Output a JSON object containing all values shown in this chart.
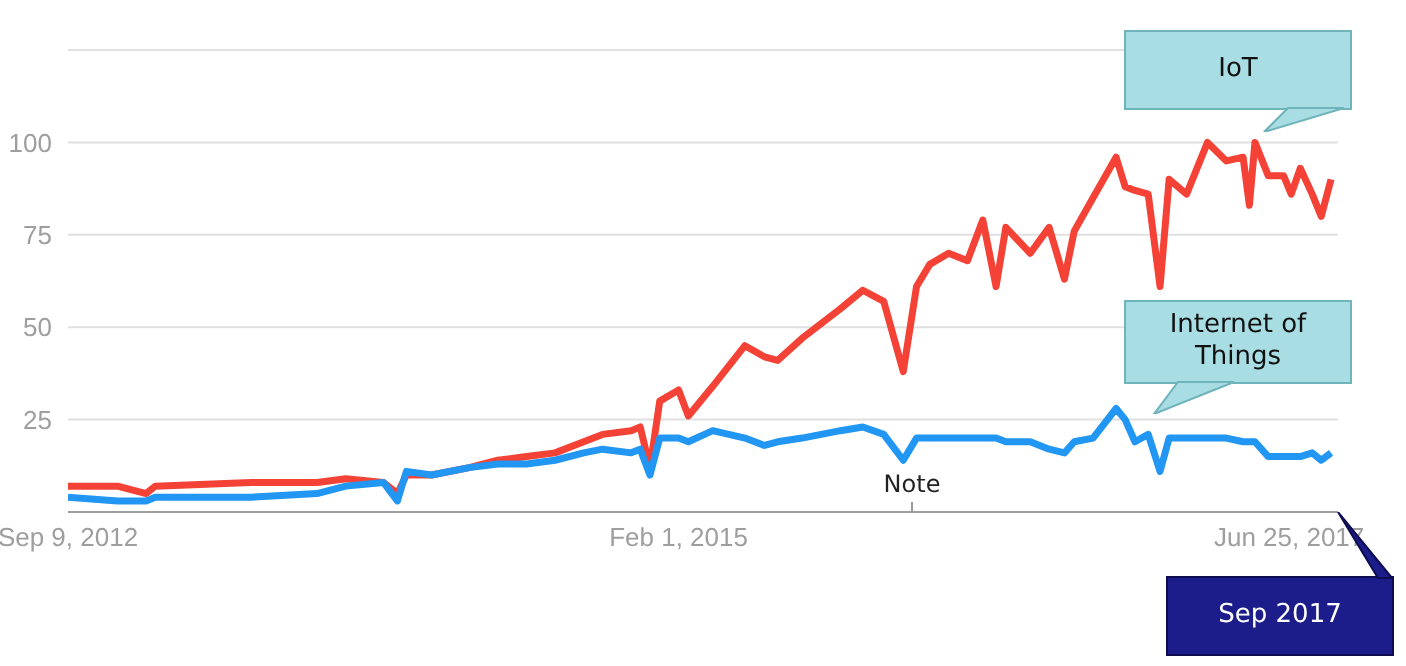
{
  "chart_data": {
    "type": "line",
    "x": [
      "2012-09-09",
      "2012-11-19",
      "2012-12-30",
      "2013-01-12",
      "2013-05-29",
      "2013-09-01",
      "2013-10-12",
      "2013-12-05",
      "2013-12-25",
      "2014-01-07",
      "2014-02-12",
      "2014-04-07",
      "2014-05-18",
      "2014-06-28",
      "2014-08-08",
      "2014-09-18",
      "2014-10-15",
      "2014-11-25",
      "2014-12-08",
      "2014-12-22",
      "2015-01-05",
      "2015-02-01",
      "2015-02-15",
      "2015-03-22",
      "2015-05-07",
      "2015-06-04",
      "2015-06-23",
      "2015-07-28",
      "2015-09-21",
      "2015-10-23",
      "2015-11-22",
      "2015-12-20",
      "2016-01-08",
      "2016-01-27",
      "2016-02-23",
      "2016-03-21",
      "2016-04-12",
      "2016-05-01",
      "2016-05-15",
      "2016-06-19",
      "2016-07-16",
      "2016-08-07",
      "2016-08-21",
      "2016-09-17",
      "2016-10-20",
      "2016-11-02",
      "2016-11-16",
      "2016-12-05",
      "2016-12-22",
      "2017-01-04",
      "2017-01-29",
      "2017-02-28",
      "2017-03-27",
      "2017-04-20",
      "2017-04-29",
      "2017-05-07",
      "2017-05-26",
      "2017-06-17",
      "2017-06-28",
      "2017-07-11",
      "2017-07-28",
      "2017-08-10",
      "2017-08-24"
    ],
    "series": [
      {
        "color": "#f44336",
        "values": [
          7,
          7,
          5,
          7,
          8,
          8,
          9,
          8,
          5,
          10,
          10,
          12,
          14,
          15,
          16,
          19,
          21,
          22,
          23,
          12,
          30,
          33,
          26,
          34,
          45,
          42,
          41,
          47,
          55,
          60,
          57,
          38,
          61,
          67,
          70,
          68,
          79,
          61,
          77,
          70,
          77,
          63,
          76,
          85,
          96,
          88,
          87,
          86,
          61,
          90,
          86,
          100,
          95,
          96,
          83,
          100,
          91,
          91,
          86,
          93,
          86,
          80,
          90
        ]
      },
      {
        "color": "#2196f3",
        "values": [
          4,
          3,
          3,
          4,
          4,
          5,
          7,
          8,
          3,
          11,
          10,
          12,
          13,
          13,
          14,
          16,
          17,
          16,
          17,
          10,
          20,
          20,
          19,
          22,
          20,
          18,
          19,
          20,
          22,
          23,
          21,
          14,
          20,
          20,
          20,
          20,
          20,
          20,
          19,
          19,
          17,
          16,
          19,
          20,
          28,
          25,
          19,
          21,
          11,
          20,
          20,
          20,
          20,
          19,
          19,
          19,
          15,
          15,
          15,
          15,
          16,
          14,
          16
        ]
      }
    ],
    "xlim": [
      "2012-09-09",
      "2017-09-03"
    ],
    "xticks": [
      {
        "value": "2012-09-09",
        "label": "Sep 9, 2012"
      },
      {
        "value": "2015-02-01",
        "label": "Feb 1, 2015"
      },
      {
        "value": "2017-06-25",
        "label": "Jun 25, 2017"
      }
    ],
    "ylim": [
      0,
      125
    ],
    "yticks": [
      25,
      50,
      75,
      100
    ],
    "grid": "y",
    "annotations": [
      "IoT",
      "Internet of Things",
      "Note",
      "Sep 2017"
    ]
  }
}
